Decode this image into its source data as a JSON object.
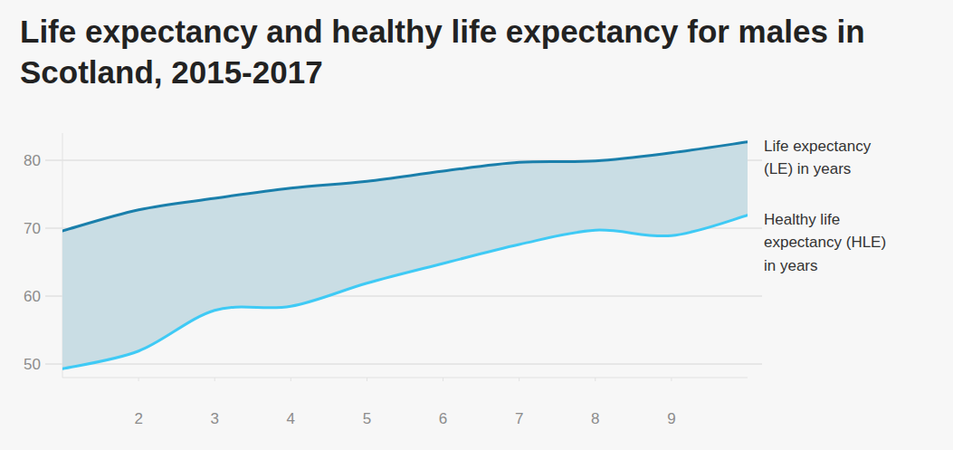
{
  "chart_data": {
    "type": "line",
    "title": "Life expectancy and healthy life expectancy for males in Scotland, 2015-2017",
    "x": [
      1,
      2,
      3,
      4,
      5,
      6,
      7,
      8,
      9,
      10
    ],
    "xlim": [
      1,
      10
    ],
    "xticks": [
      2,
      3,
      4,
      5,
      6,
      7,
      8,
      9
    ],
    "ylim": [
      48,
      84
    ],
    "yticks": [
      50,
      60,
      70,
      80
    ],
    "grid": true,
    "series": [
      {
        "name": "Life expectancy (LE) in years",
        "color": "#1a7fab",
        "values": [
          69.6,
          72.7,
          74.4,
          75.9,
          76.9,
          78.4,
          79.7,
          79.9,
          81.1,
          82.7
        ]
      },
      {
        "name": "Healthy life expectancy (HLE) in years",
        "color": "#3fcaf5",
        "values": [
          49.3,
          51.9,
          57.9,
          58.5,
          61.9,
          64.8,
          67.6,
          69.7,
          68.9,
          71.9
        ]
      }
    ]
  }
}
